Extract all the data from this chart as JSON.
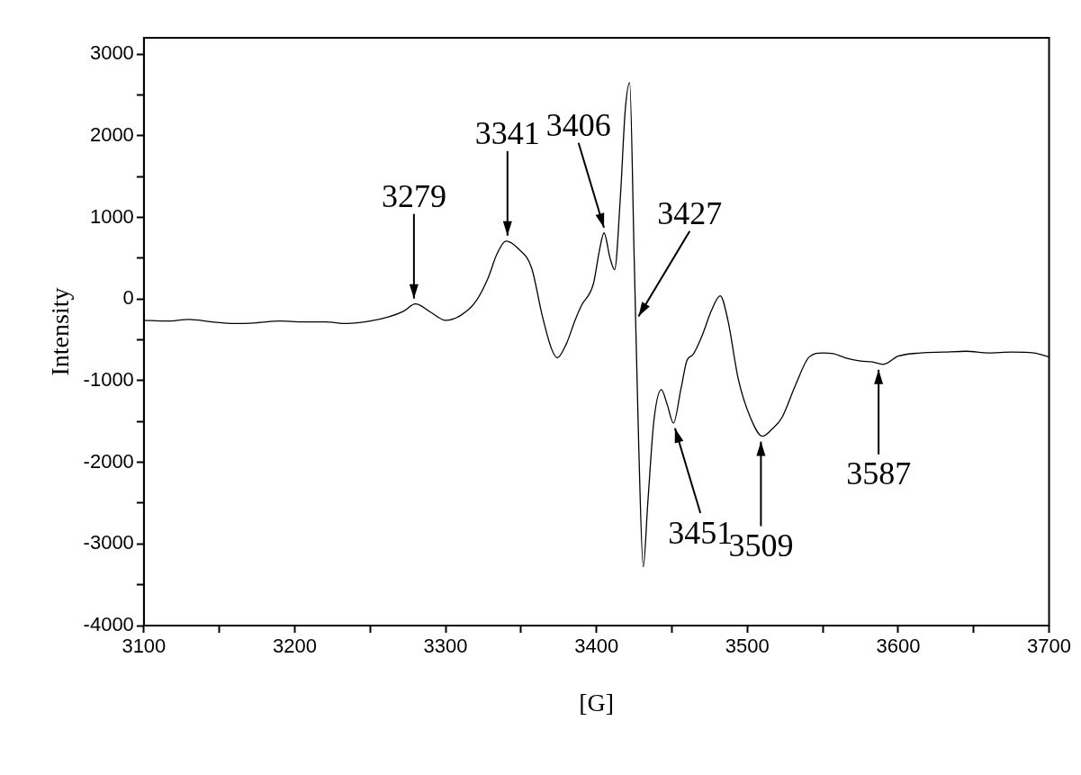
{
  "chart_data": {
    "type": "line",
    "xlabel": "[G]",
    "ylabel": "Intensity",
    "x": [
      3100,
      3115,
      3130,
      3145,
      3160,
      3175,
      3190,
      3205,
      3220,
      3235,
      3250,
      3262,
      3272,
      3280,
      3290,
      3300,
      3310,
      3320,
      3328,
      3334,
      3340,
      3348,
      3357,
      3364,
      3370,
      3374,
      3380,
      3386,
      3390,
      3398,
      3402,
      3405,
      3409,
      3412,
      3416,
      3419,
      3422,
      3425,
      3428,
      3431,
      3434,
      3438,
      3443,
      3447,
      3451,
      3456,
      3460,
      3464,
      3470,
      3476,
      3482,
      3487,
      3494,
      3502,
      3510,
      3516,
      3523,
      3532,
      3541,
      3550,
      3557,
      3565,
      3575,
      3583,
      3590,
      3600,
      3615,
      3630,
      3645,
      3660,
      3675,
      3690,
      3700
    ],
    "series": [
      {
        "color": "#000000",
        "values": [
          -260,
          -270,
          -250,
          -280,
          -300,
          -290,
          -270,
          -280,
          -280,
          -300,
          -270,
          -220,
          -150,
          -60,
          -160,
          -260,
          -200,
          -30,
          250,
          550,
          710,
          620,
          380,
          -200,
          -600,
          -720,
          -550,
          -250,
          -80,
          190,
          600,
          810,
          500,
          360,
          1300,
          2300,
          2650,
          500,
          -1800,
          -3280,
          -2500,
          -1500,
          -1110,
          -1300,
          -1520,
          -1100,
          -750,
          -680,
          -450,
          -150,
          40,
          -250,
          -980,
          -1450,
          -1680,
          -1600,
          -1450,
          -1050,
          -710,
          -660,
          -670,
          -720,
          -760,
          -770,
          -800,
          -700,
          -660,
          -650,
          -640,
          -660,
          -650,
          -660,
          -710
        ]
      }
    ],
    "xlim": [
      3100,
      3700
    ],
    "xticks": [
      3100,
      {
        "value": 3150,
        "label": null
      },
      3200,
      {
        "value": 3250,
        "label": null
      },
      3300,
      {
        "value": 3350,
        "label": null
      },
      3400,
      {
        "value": 3450,
        "label": null
      },
      3500,
      {
        "value": 3550,
        "label": null
      },
      3600,
      {
        "value": 3650,
        "label": null
      },
      3700
    ],
    "ylim": [
      -4000,
      3200
    ],
    "yticks": [
      -4000,
      {
        "value": -3500,
        "label": null
      },
      -3000,
      {
        "value": -2500,
        "label": null
      },
      -2000,
      {
        "value": -1500,
        "label": null
      },
      -1000,
      {
        "value": -500,
        "label": null
      },
      0,
      {
        "value": 500,
        "label": null
      },
      1000,
      {
        "value": 1500,
        "label": null
      },
      2000,
      {
        "value": 2500,
        "label": null
      },
      3000
    ],
    "grid": false,
    "legend": false,
    "marker": "none",
    "line_style": "solid",
    "annotations": [
      {
        "text": "3279",
        "x": 3279,
        "y": -60
      },
      {
        "text": "3341",
        "x": 3341,
        "y": 710
      },
      {
        "text": "3406",
        "x": 3406,
        "y": 810
      },
      {
        "text": "3427",
        "x": 3426,
        "y": -270
      },
      {
        "text": "3451",
        "x": 3451,
        "y": -1520
      },
      {
        "text": "3509",
        "x": 3509,
        "y": -1680
      },
      {
        "text": "3587",
        "x": 3587,
        "y": -800
      }
    ]
  }
}
